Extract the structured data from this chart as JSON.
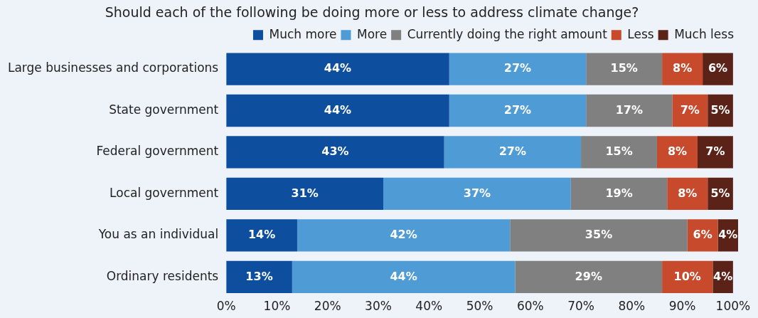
{
  "chart_data": {
    "type": "bar",
    "orientation": "horizontal",
    "stacked": true,
    "title": "Should each of the following be doing more or less to address climate change?",
    "categories": [
      "Large businesses and corporations",
      "State government",
      "Federal government",
      "Local government",
      "You as an individual",
      "Ordinary residents"
    ],
    "series": [
      {
        "name": "Much more",
        "color": "#0d4f9e",
        "values": [
          44,
          44,
          43,
          31,
          14,
          13
        ],
        "value_labels": [
          "44%",
          "44%",
          "43%",
          "31%",
          "14%",
          "13%"
        ]
      },
      {
        "name": "More",
        "color": "#4e9bd6",
        "values": [
          27,
          27,
          27,
          37,
          42,
          44
        ],
        "value_labels": [
          "27%",
          "27%",
          "27%",
          "37%",
          "42%",
          "44%"
        ]
      },
      {
        "name": "Currently doing the right amount",
        "color": "#808080",
        "values": [
          15,
          17,
          15,
          19,
          35,
          29
        ],
        "value_labels": [
          "15%",
          "17%",
          "15%",
          "19%",
          "35%",
          "29%"
        ]
      },
      {
        "name": "Less",
        "color": "#c84a2c",
        "values": [
          8,
          7,
          8,
          8,
          6,
          10
        ],
        "value_labels": [
          "8%",
          "7%",
          "8%",
          "8%",
          "6%",
          "10%"
        ]
      },
      {
        "name": "Much less",
        "color": "#5b2217",
        "values": [
          6,
          5,
          7,
          5,
          4,
          4
        ],
        "value_labels": [
          "6%",
          "5%",
          "7%",
          "5%",
          "4%",
          "4%"
        ]
      }
    ],
    "xlim": [
      0,
      101
    ],
    "xticks": [
      {
        "value": 0,
        "label": "0%"
      },
      {
        "value": 10,
        "label": "10%"
      },
      {
        "value": 20,
        "label": "20%"
      },
      {
        "value": 30,
        "label": "30%"
      },
      {
        "value": 40,
        "label": "40%"
      },
      {
        "value": 50,
        "label": "50%"
      },
      {
        "value": 60,
        "label": "60%"
      },
      {
        "value": 70,
        "label": "70%"
      },
      {
        "value": 80,
        "label": "80%"
      },
      {
        "value": 90,
        "label": "90%"
      },
      {
        "value": 100,
        "label": "100%"
      }
    ],
    "grid": false,
    "legend": "top right"
  }
}
